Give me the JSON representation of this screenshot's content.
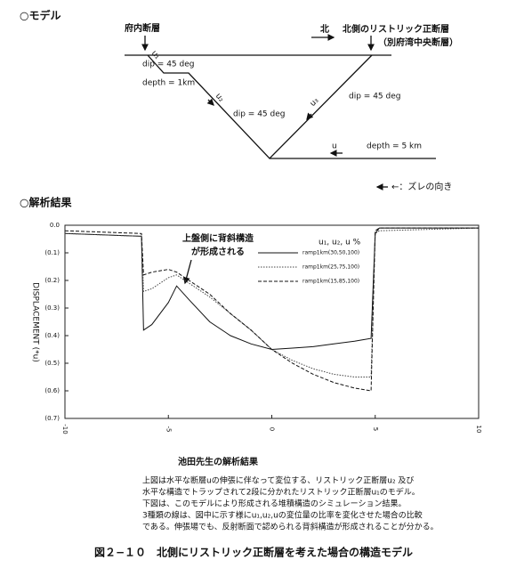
{
  "model": {
    "heading": "○モデル",
    "left_fault": "府内断層",
    "north": "北",
    "right_fault": "北側のリストリック正断層",
    "right_fault_alias": "（別府湾中央断層）",
    "dip_1": "dip = 45 deg",
    "depth_1": "depth = 1km",
    "dip_2": "dip = 45 deg",
    "dip_3": "dip = 45 deg",
    "depth_2": "depth = 5 km",
    "u": "u",
    "u1": "u₁",
    "u2": "u₂",
    "u3": "u₃",
    "legend": "←：ズレの向き"
  },
  "results_heading": "○解析結果",
  "chart_data": {
    "type": "line",
    "y_label": "DISPLACEMENT (*u)",
    "annotation": [
      "上盤側に背斜構造",
      "が形成される"
    ],
    "legend_title": "u₁, u₂, u %",
    "x": [
      -10,
      -6.3,
      -6.2,
      -5.8,
      -5,
      -4.6,
      -4,
      -3,
      -2,
      -1,
      0,
      1,
      2,
      3,
      4,
      4.8,
      5,
      5.2,
      10
    ],
    "series": [
      {
        "name": "ramp1km(30,50,100)",
        "color": "#111",
        "style": "solid",
        "values": [
          -0.03,
          -0.04,
          -0.38,
          -0.36,
          -0.28,
          -0.22,
          -0.27,
          -0.35,
          -0.4,
          -0.43,
          -0.45,
          -0.445,
          -0.44,
          -0.43,
          -0.42,
          -0.41,
          -0.03,
          -0.01,
          -0.01
        ]
      },
      {
        "name": "ramp1km(25,75,100)",
        "color": "#444",
        "style": "dotted",
        "values": [
          -0.03,
          -0.04,
          -0.24,
          -0.23,
          -0.19,
          -0.18,
          -0.21,
          -0.26,
          -0.32,
          -0.38,
          -0.45,
          -0.49,
          -0.52,
          -0.54,
          -0.55,
          -0.55,
          -0.03,
          -0.02,
          -0.01
        ]
      },
      {
        "name": "ramp1km(15,85,100)",
        "color": "#111",
        "style": "dashed",
        "values": [
          -0.02,
          -0.03,
          -0.18,
          -0.17,
          -0.16,
          -0.17,
          -0.2,
          -0.25,
          -0.32,
          -0.38,
          -0.45,
          -0.5,
          -0.54,
          -0.57,
          -0.59,
          -0.6,
          -0.02,
          -0.01,
          -0.01
        ]
      }
    ],
    "xlim": [
      -10,
      10
    ],
    "xticks": [
      -10,
      -5,
      0,
      5,
      10
    ],
    "ylim": [
      -0.7,
      0
    ],
    "yticks": [
      {
        "value": 0,
        "label": "0.0"
      },
      {
        "value": -0.1,
        "label": "(0.1)"
      },
      {
        "value": -0.2,
        "label": "(0.2)"
      },
      {
        "value": -0.3,
        "label": "(0.3)"
      },
      {
        "value": -0.4,
        "label": "(0.4)"
      },
      {
        "value": -0.5,
        "label": "(0.5)"
      },
      {
        "value": -0.6,
        "label": "(0.6)"
      },
      {
        "value": -0.7,
        "label": "(0.7)"
      }
    ]
  },
  "caption": {
    "source": "池田先生の解析結果",
    "lines": [
      "上図は水平な断層uの伸張に伴なって変位する、リストリック正断層u₂ 及び",
      "水平な構造でトラップされて2段に分かれたリストリック正断層u₁のモデル。",
      "下図は、このモデルにより形成される堆積構造のシミュレーション結果。",
      "3種類の線は、図中に示す様にu₁,u₂,uの変位量の比率を変化させた場合の比較",
      "である。伸張場でも、反射断面で認められる背斜構造が形成されることが分かる。"
    ],
    "figure_title": "図２−１０　北側にリストリック正断層を考えた場合の構造モデル"
  }
}
